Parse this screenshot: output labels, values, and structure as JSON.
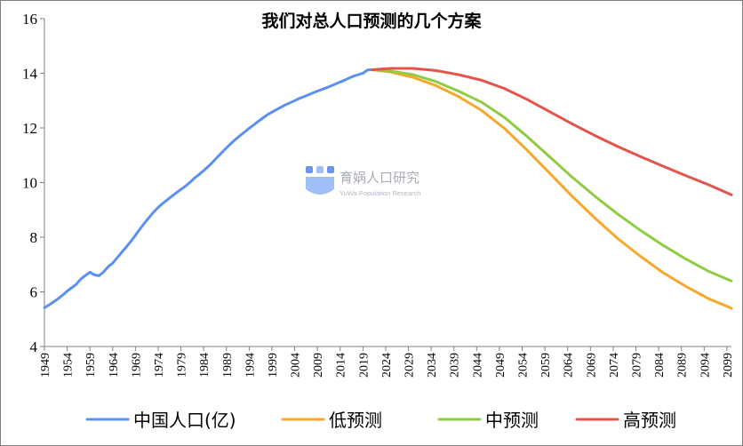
{
  "chart_data": {
    "type": "line",
    "title": "我们对总人口预测的几个方案",
    "xlabel": "",
    "ylabel": "",
    "ylim": [
      4,
      16
    ],
    "yticks": [
      4,
      6,
      8,
      10,
      12,
      14,
      16
    ],
    "xlim": [
      1949,
      2100
    ],
    "xticks": [
      1949,
      1954,
      1959,
      1964,
      1969,
      1974,
      1979,
      1984,
      1989,
      1994,
      1999,
      2004,
      2009,
      2014,
      2019,
      2024,
      2029,
      2034,
      2039,
      2044,
      2049,
      2054,
      2059,
      2064,
      2069,
      2074,
      2079,
      2084,
      2089,
      2094,
      2099
    ],
    "grid": false,
    "legend_position": "bottom",
    "series": [
      {
        "name": "中国人口(亿)",
        "color": "#5b8ff1",
        "x": [
          1949,
          1950,
          1951,
          1952,
          1953,
          1954,
          1955,
          1956,
          1957,
          1958,
          1959,
          1960,
          1961,
          1962,
          1963,
          1964,
          1965,
          1966,
          1967,
          1968,
          1969,
          1970,
          1971,
          1972,
          1973,
          1974,
          1975,
          1976,
          1977,
          1978,
          1979,
          1980,
          1981,
          1982,
          1983,
          1984,
          1985,
          1986,
          1987,
          1988,
          1989,
          1990,
          1991,
          1992,
          1993,
          1994,
          1995,
          1996,
          1997,
          1998,
          1999,
          2000,
          2001,
          2002,
          2003,
          2004,
          2005,
          2006,
          2007,
          2008,
          2009,
          2010,
          2011,
          2012,
          2013,
          2014,
          2015,
          2016,
          2017,
          2018,
          2019,
          2020,
          2021
        ],
        "values": [
          5.42,
          5.52,
          5.63,
          5.75,
          5.88,
          6.03,
          6.15,
          6.28,
          6.47,
          6.6,
          6.72,
          6.62,
          6.59,
          6.73,
          6.92,
          7.05,
          7.25,
          7.45,
          7.64,
          7.85,
          8.07,
          8.3,
          8.52,
          8.72,
          8.92,
          9.09,
          9.24,
          9.37,
          9.5,
          9.63,
          9.75,
          9.87,
          10.01,
          10.17,
          10.3,
          10.44,
          10.59,
          10.75,
          10.93,
          11.1,
          11.27,
          11.43,
          11.58,
          11.72,
          11.85,
          11.99,
          12.11,
          12.24,
          12.36,
          12.48,
          12.58,
          12.67,
          12.76,
          12.85,
          12.92,
          13.0,
          13.08,
          13.14,
          13.21,
          13.28,
          13.35,
          13.41,
          13.47,
          13.54,
          13.61,
          13.68,
          13.75,
          13.83,
          13.9,
          13.95,
          14.0,
          14.12,
          14.13
        ]
      },
      {
        "name": "低预测",
        "color": "#f7a72a",
        "x": [
          2021,
          2025,
          2030,
          2035,
          2040,
          2045,
          2050,
          2055,
          2060,
          2065,
          2070,
          2075,
          2080,
          2085,
          2090,
          2095,
          2100
        ],
        "values": [
          14.13,
          14.05,
          13.85,
          13.55,
          13.15,
          12.65,
          12.0,
          11.2,
          10.35,
          9.5,
          8.7,
          7.95,
          7.3,
          6.7,
          6.2,
          5.75,
          5.4
        ]
      },
      {
        "name": "中预测",
        "color": "#8fcb43",
        "x": [
          2021,
          2025,
          2030,
          2035,
          2040,
          2045,
          2050,
          2055,
          2060,
          2065,
          2070,
          2075,
          2080,
          2085,
          2090,
          2095,
          2100
        ],
        "values": [
          14.13,
          14.08,
          13.95,
          13.7,
          13.35,
          12.95,
          12.4,
          11.7,
          10.95,
          10.2,
          9.5,
          8.85,
          8.25,
          7.7,
          7.2,
          6.75,
          6.4
        ]
      },
      {
        "name": "高预测",
        "color": "#e5544a",
        "x": [
          2021,
          2025,
          2030,
          2035,
          2040,
          2045,
          2050,
          2055,
          2060,
          2065,
          2070,
          2075,
          2080,
          2085,
          2090,
          2095,
          2100
        ],
        "values": [
          14.13,
          14.18,
          14.18,
          14.1,
          13.95,
          13.75,
          13.45,
          13.05,
          12.6,
          12.15,
          11.72,
          11.32,
          10.95,
          10.6,
          10.25,
          9.92,
          9.55
        ]
      }
    ]
  },
  "watermark": {
    "name_cn": "育娲人口研究",
    "name_en": "YuWa Population Research",
    "logo_colors": [
      "#6b93f3",
      "#9ec0f7"
    ]
  }
}
